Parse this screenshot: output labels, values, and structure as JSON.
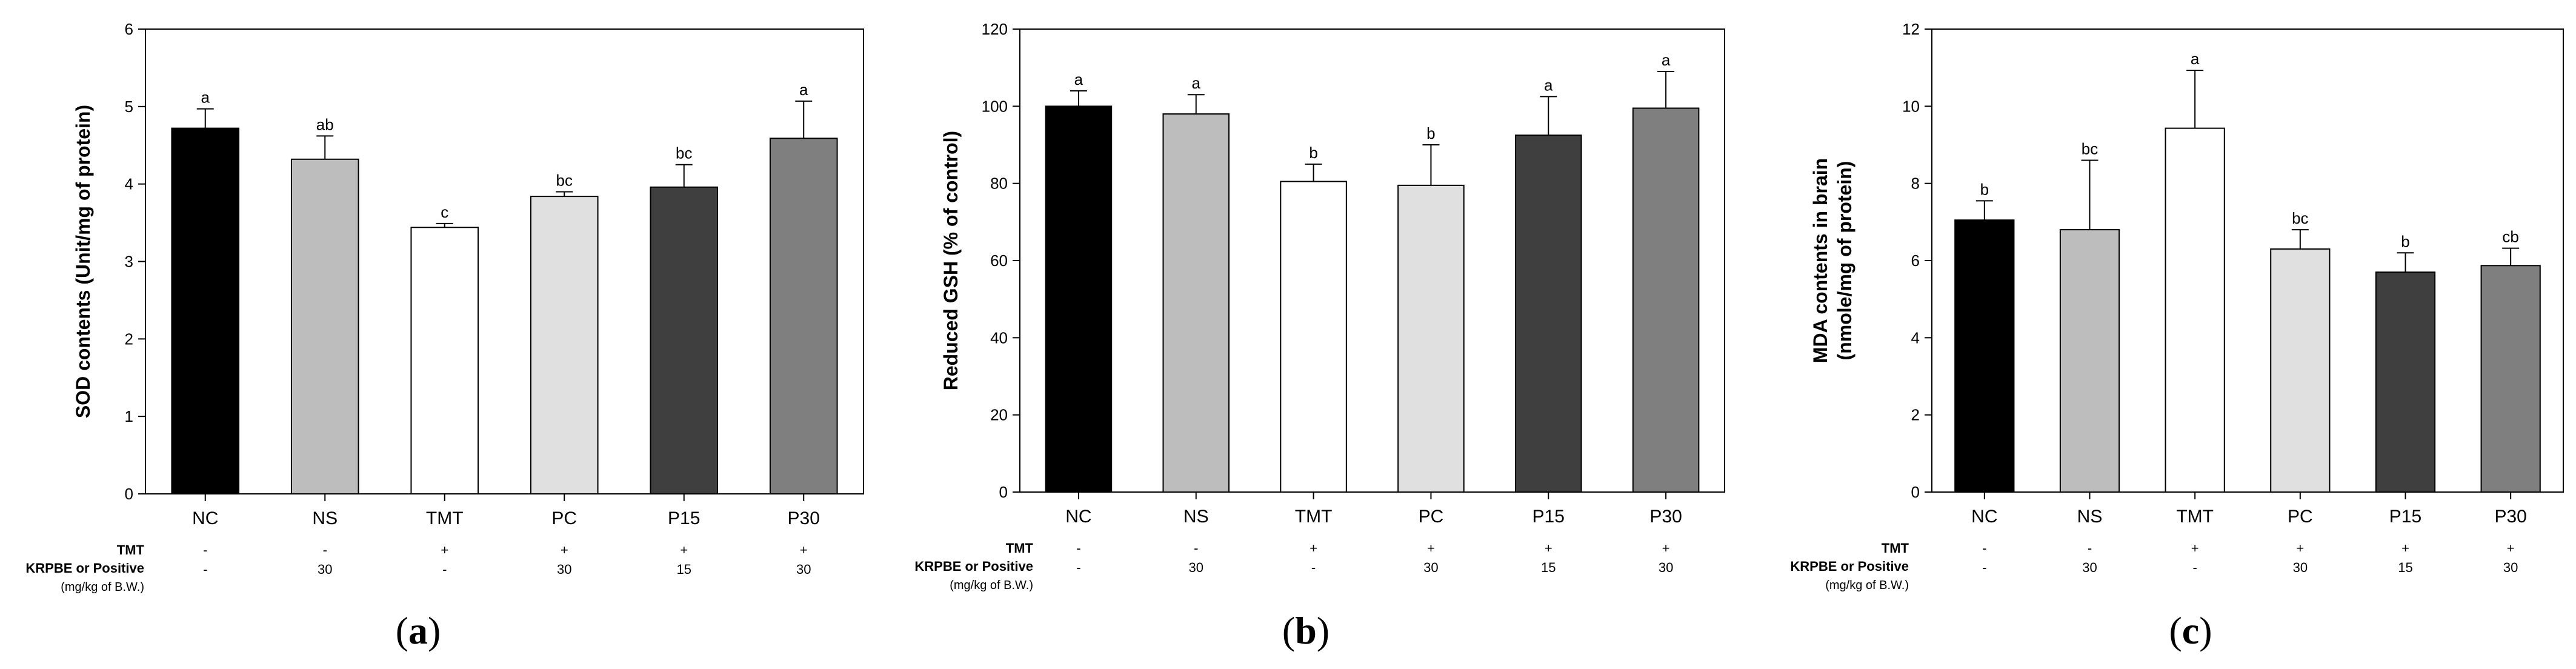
{
  "chart_data": [
    {
      "type": "bar",
      "panel_label": "a",
      "categories": [
        "NC",
        "NS",
        "TMT",
        "PC",
        "P15",
        "P30"
      ],
      "values": [
        4.72,
        4.32,
        3.44,
        3.84,
        3.96,
        4.59
      ],
      "errors": [
        0.25,
        0.3,
        0.05,
        0.06,
        0.29,
        0.48
      ],
      "significance": [
        "a",
        "ab",
        "c",
        "bc",
        "bc",
        "a"
      ],
      "colors": [
        "#000000",
        "#bdbdbd",
        "#ffffff",
        "#e0e0e0",
        "#3f3f3f",
        "#7f7f7f"
      ],
      "ylabel": "SOD contents (Unit/mg of protein)",
      "ylim": [
        0,
        6
      ],
      "yticks": [
        0,
        1,
        2,
        3,
        4,
        5,
        6
      ],
      "treatment_table": {
        "row1_label": "TMT",
        "row1": [
          "-",
          "-",
          "+",
          "+",
          "+",
          "+"
        ],
        "row2_label": "KRPBE or Positive",
        "row2_sub": "(mg/kg of B.W.)",
        "row2": [
          "-",
          "30",
          "-",
          "30",
          "15",
          "30"
        ]
      }
    },
    {
      "type": "bar",
      "panel_label": "b",
      "categories": [
        "NC",
        "NS",
        "TMT",
        "PC",
        "P15",
        "P30"
      ],
      "values": [
        100.0,
        98.0,
        80.5,
        79.5,
        92.5,
        99.5
      ],
      "errors": [
        4.0,
        5.0,
        4.5,
        10.5,
        10.0,
        9.5
      ],
      "significance": [
        "a",
        "a",
        "b",
        "b",
        "a",
        "a"
      ],
      "colors": [
        "#000000",
        "#bdbdbd",
        "#ffffff",
        "#e0e0e0",
        "#3f3f3f",
        "#7f7f7f"
      ],
      "ylabel": "Reduced GSH (% of control)",
      "ylim": [
        0,
        120
      ],
      "yticks": [
        0,
        20,
        40,
        60,
        80,
        100,
        120
      ],
      "treatment_table": {
        "row1_label": "TMT",
        "row1": [
          "-",
          "-",
          "+",
          "+",
          "+",
          "+"
        ],
        "row2_label": "KRPBE or Positive",
        "row2_sub": "(mg/kg of B.W.)",
        "row2": [
          "-",
          "30",
          "-",
          "30",
          "15",
          "30"
        ]
      }
    },
    {
      "type": "bar",
      "panel_label": "c",
      "categories": [
        "NC",
        "NS",
        "TMT",
        "PC",
        "P15",
        "P30"
      ],
      "values": [
        7.05,
        6.8,
        9.43,
        6.3,
        5.7,
        5.87
      ],
      "errors": [
        0.5,
        1.8,
        1.5,
        0.5,
        0.5,
        0.45
      ],
      "significance": [
        "b",
        "bc",
        "a",
        "bc",
        "b",
        "cb"
      ],
      "colors": [
        "#000000",
        "#bdbdbd",
        "#ffffff",
        "#e0e0e0",
        "#3f3f3f",
        "#7f7f7f"
      ],
      "ylabel": "MDA contents in brain",
      "ylabel2": "(nmole/mg of protein)",
      "ylim": [
        0,
        12
      ],
      "yticks": [
        0,
        2,
        4,
        6,
        8,
        10,
        12
      ],
      "treatment_table": {
        "row1_label": "TMT",
        "row1": [
          "-",
          "-",
          "+",
          "+",
          "+",
          "+"
        ],
        "row2_label": "KRPBE or Positive",
        "row2_sub": "(mg/kg of B.W.)",
        "row2": [
          "-",
          "30",
          "-",
          "30",
          "15",
          "30"
        ]
      }
    }
  ]
}
